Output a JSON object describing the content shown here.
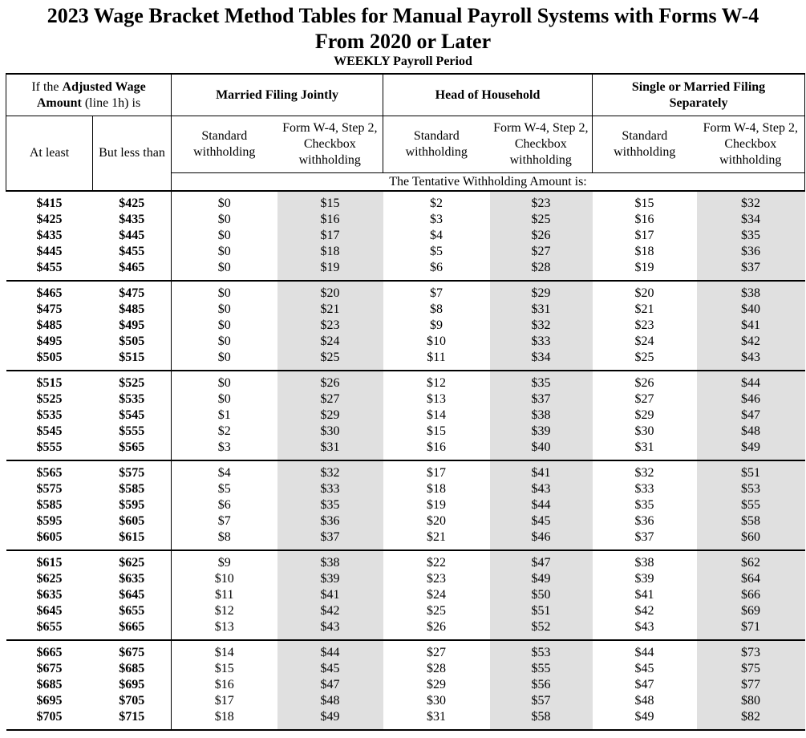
{
  "title": {
    "line1": "2023 Wage Bracket Method Tables for Manual Payroll Systems with Forms W-4",
    "line2": "From 2020 or Later",
    "subtitle": "WEEKLY Payroll Period"
  },
  "header": {
    "wage_label_pre": "If the ",
    "wage_label_bold": "Adjusted Wage Amount",
    "wage_label_post": " (line 1h) is",
    "col_groups": [
      "Married Filing Jointly",
      "Head of Household",
      "Single or Married Filing Separately"
    ],
    "at_least": "At least",
    "but_less_than": "But less than",
    "standard": "Standard withholding",
    "checkbox": "Form W-4, Step 2, Checkbox withholding",
    "tentative": "The Tentative Withholding Amount is:"
  },
  "colors": {
    "shaded_column": "#e0e0e0",
    "text": "#000000",
    "background": "#ffffff"
  },
  "table": {
    "groups": [
      {
        "rows": [
          [
            "$415",
            "$425",
            "$0",
            "$15",
            "$2",
            "$23",
            "$15",
            "$32"
          ],
          [
            "$425",
            "$435",
            "$0",
            "$16",
            "$3",
            "$25",
            "$16",
            "$34"
          ],
          [
            "$435",
            "$445",
            "$0",
            "$17",
            "$4",
            "$26",
            "$17",
            "$35"
          ],
          [
            "$445",
            "$455",
            "$0",
            "$18",
            "$5",
            "$27",
            "$18",
            "$36"
          ],
          [
            "$455",
            "$465",
            "$0",
            "$19",
            "$6",
            "$28",
            "$19",
            "$37"
          ]
        ]
      },
      {
        "rows": [
          [
            "$465",
            "$475",
            "$0",
            "$20",
            "$7",
            "$29",
            "$20",
            "$38"
          ],
          [
            "$475",
            "$485",
            "$0",
            "$21",
            "$8",
            "$31",
            "$21",
            "$40"
          ],
          [
            "$485",
            "$495",
            "$0",
            "$23",
            "$9",
            "$32",
            "$23",
            "$41"
          ],
          [
            "$495",
            "$505",
            "$0",
            "$24",
            "$10",
            "$33",
            "$24",
            "$42"
          ],
          [
            "$505",
            "$515",
            "$0",
            "$25",
            "$11",
            "$34",
            "$25",
            "$43"
          ]
        ]
      },
      {
        "rows": [
          [
            "$515",
            "$525",
            "$0",
            "$26",
            "$12",
            "$35",
            "$26",
            "$44"
          ],
          [
            "$525",
            "$535",
            "$0",
            "$27",
            "$13",
            "$37",
            "$27",
            "$46"
          ],
          [
            "$535",
            "$545",
            "$1",
            "$29",
            "$14",
            "$38",
            "$29",
            "$47"
          ],
          [
            "$545",
            "$555",
            "$2",
            "$30",
            "$15",
            "$39",
            "$30",
            "$48"
          ],
          [
            "$555",
            "$565",
            "$3",
            "$31",
            "$16",
            "$40",
            "$31",
            "$49"
          ]
        ]
      },
      {
        "rows": [
          [
            "$565",
            "$575",
            "$4",
            "$32",
            "$17",
            "$41",
            "$32",
            "$51"
          ],
          [
            "$575",
            "$585",
            "$5",
            "$33",
            "$18",
            "$43",
            "$33",
            "$53"
          ],
          [
            "$585",
            "$595",
            "$6",
            "$35",
            "$19",
            "$44",
            "$35",
            "$55"
          ],
          [
            "$595",
            "$605",
            "$7",
            "$36",
            "$20",
            "$45",
            "$36",
            "$58"
          ],
          [
            "$605",
            "$615",
            "$8",
            "$37",
            "$21",
            "$46",
            "$37",
            "$60"
          ]
        ]
      },
      {
        "rows": [
          [
            "$615",
            "$625",
            "$9",
            "$38",
            "$22",
            "$47",
            "$38",
            "$62"
          ],
          [
            "$625",
            "$635",
            "$10",
            "$39",
            "$23",
            "$49",
            "$39",
            "$64"
          ],
          [
            "$635",
            "$645",
            "$11",
            "$41",
            "$24",
            "$50",
            "$41",
            "$66"
          ],
          [
            "$645",
            "$655",
            "$12",
            "$42",
            "$25",
            "$51",
            "$42",
            "$69"
          ],
          [
            "$655",
            "$665",
            "$13",
            "$43",
            "$26",
            "$52",
            "$43",
            "$71"
          ]
        ]
      },
      {
        "rows": [
          [
            "$665",
            "$675",
            "$14",
            "$44",
            "$27",
            "$53",
            "$44",
            "$73"
          ],
          [
            "$675",
            "$685",
            "$15",
            "$45",
            "$28",
            "$55",
            "$45",
            "$75"
          ],
          [
            "$685",
            "$695",
            "$16",
            "$47",
            "$29",
            "$56",
            "$47",
            "$77"
          ],
          [
            "$695",
            "$705",
            "$17",
            "$48",
            "$30",
            "$57",
            "$48",
            "$80"
          ],
          [
            "$705",
            "$715",
            "$18",
            "$49",
            "$31",
            "$58",
            "$49",
            "$82"
          ]
        ]
      }
    ]
  }
}
